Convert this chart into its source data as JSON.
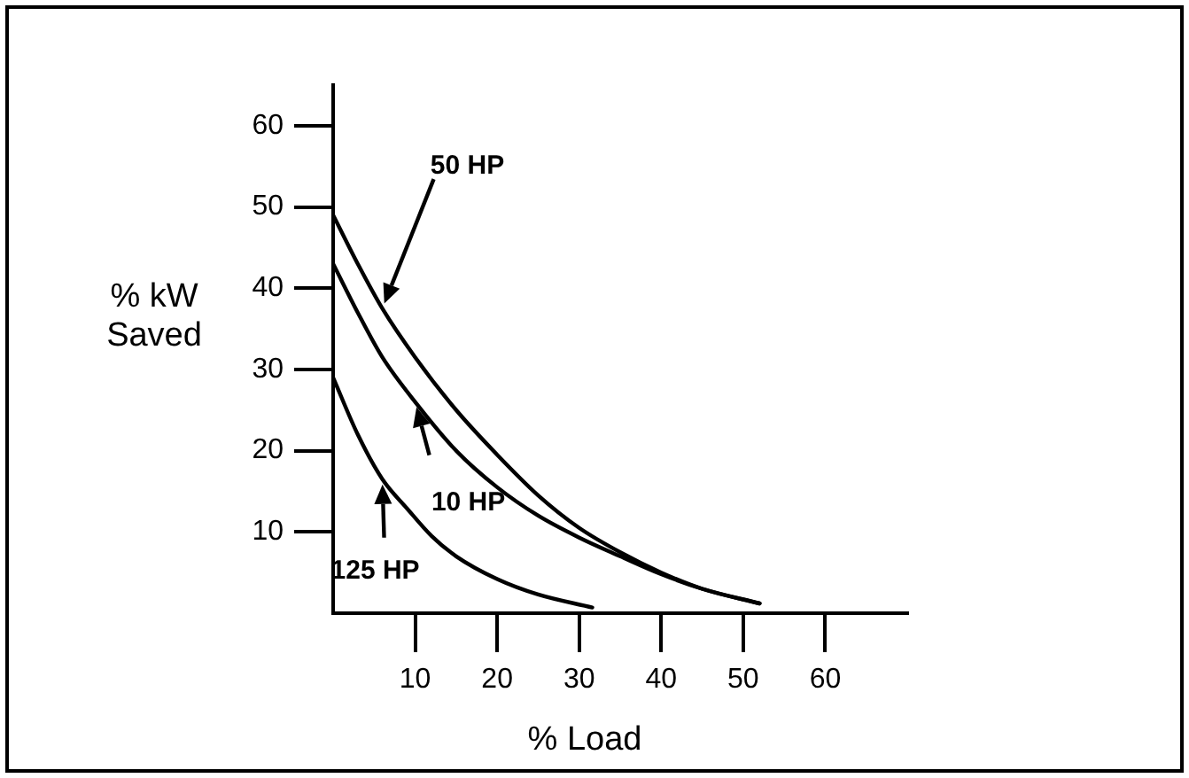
{
  "chart_data": {
    "type": "line",
    "xlabel": "% Load",
    "ylabel": "% kW Saved",
    "xlim": [
      0,
      70
    ],
    "ylim": [
      0,
      65
    ],
    "xticks": [
      10,
      20,
      30,
      40,
      50,
      60
    ],
    "yticks": [
      10,
      20,
      30,
      40,
      50,
      60
    ],
    "grid": false,
    "marker": "none",
    "line_style": "solid",
    "series": [
      {
        "name": "50 HP",
        "color": "#000000",
        "x": [
          0,
          3,
          6,
          10,
          15,
          20,
          25,
          30,
          35,
          40,
          45,
          52
        ],
        "values": [
          49,
          43,
          37.5,
          31.5,
          25,
          19.5,
          14.5,
          10.5,
          7.5,
          5,
          3,
          1.2
        ]
      },
      {
        "name": "10 HP",
        "color": "#000000",
        "x": [
          0,
          3,
          6,
          10,
          15,
          20,
          25,
          30,
          35,
          40,
          45,
          52
        ],
        "values": [
          43,
          37,
          31.5,
          26,
          20,
          15.5,
          12,
          9.3,
          7,
          4.8,
          3,
          1.2
        ]
      },
      {
        "name": "125 HP",
        "color": "#000000",
        "x": [
          0,
          3,
          6,
          9,
          12,
          15,
          20,
          25,
          31.6
        ],
        "values": [
          29,
          22,
          16.5,
          12.9,
          9.5,
          7,
          4.2,
          2.3,
          0.7
        ]
      }
    ]
  }
}
